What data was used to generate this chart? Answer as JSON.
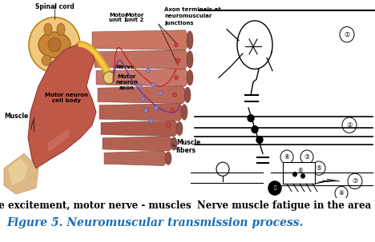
{
  "figure_caption": "Figure 5. Neuromuscular transmission process.",
  "caption_color": "#1a6eb5",
  "caption_fontsize": 10,
  "caption_style": "italic",
  "left_label": "The excitement, motor nerve - muscles",
  "right_label": "Nerve muscle fatigue in the area",
  "label_fontsize": 8.5,
  "bg_color": "#ffffff",
  "fig_width": 4.68,
  "fig_height": 3.03,
  "dpi": 100
}
